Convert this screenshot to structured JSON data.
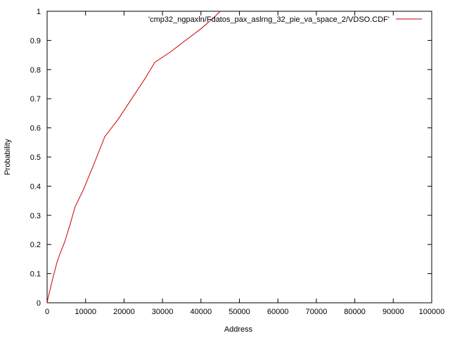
{
  "chart_data": {
    "type": "line",
    "title": "",
    "xlabel": "Address",
    "ylabel": "Probability",
    "xlim": [
      0,
      100000
    ],
    "ylim": [
      0,
      1
    ],
    "x_ticks": [
      0,
      10000,
      20000,
      30000,
      40000,
      50000,
      60000,
      70000,
      80000,
      90000,
      100000
    ],
    "y_ticks": [
      0,
      0.1,
      0.2,
      0.3,
      0.4,
      0.5,
      0.6,
      0.7,
      0.8,
      0.9,
      1
    ],
    "x_tick_labels": [
      "0",
      "10000",
      "20000",
      "30000",
      "40000",
      "50000",
      "60000",
      "70000",
      "80000",
      "90000",
      "100000"
    ],
    "y_tick_labels": [
      "0",
      "0.1",
      "0.2",
      "0.3",
      "0.4",
      "0.5",
      "0.6",
      "0.7",
      "0.8",
      "0.9",
      "1"
    ],
    "grid": false,
    "legend_position": "top-right",
    "series": [
      {
        "name": "'cmp32_ngpaxln/Fdatos_pax_aslrng_32_pie_va_space_2/VDSO.CDF'",
        "color": "#cc0000",
        "x": [
          0,
          300,
          700,
          1200,
          1800,
          2600,
          3400,
          4600,
          6000,
          7300,
          9500,
          12000,
          15000,
          18500,
          22000,
          25500,
          28000,
          32000,
          36000,
          40000,
          43500,
          45000
        ],
        "y": [
          0,
          0.02,
          0.04,
          0.07,
          0.1,
          0.14,
          0.17,
          0.21,
          0.27,
          0.33,
          0.39,
          0.47,
          0.57,
          0.63,
          0.7,
          0.77,
          0.825,
          0.86,
          0.9,
          0.94,
          0.98,
          1.0
        ]
      }
    ]
  }
}
